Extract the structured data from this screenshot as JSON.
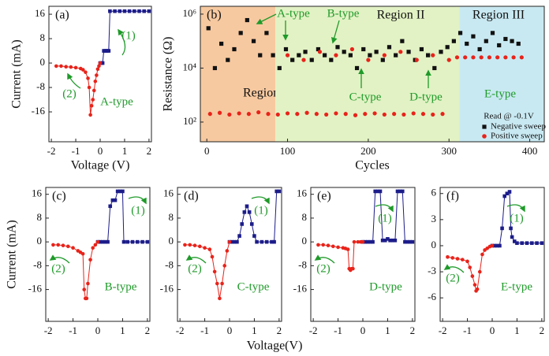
{
  "chart_data": [
    {
      "type": "line",
      "panel_label": "(a)",
      "x_label": "Voltage (V)",
      "y_label": "Current (mA)",
      "annotations": [
        "A-type",
        "(1)",
        "(2)"
      ],
      "xlim": [
        -2.1,
        2.1
      ],
      "xticks": [
        -2,
        -1,
        0,
        1,
        2
      ],
      "ylim": [
        -25.8,
        18.6
      ],
      "yticks": [
        16,
        8,
        0,
        -8,
        -16
      ],
      "series": [
        {
          "color": "#1c1c8a",
          "marker": "square",
          "x": [
            0,
            0.05,
            0.1,
            0.15,
            0.2,
            0.25,
            0.3,
            0.35,
            0.4,
            0.6,
            0.8,
            1.0,
            1.2,
            1.4,
            1.6,
            1.8,
            2.0
          ],
          "values": [
            0,
            0,
            0,
            4,
            4,
            4,
            4,
            4,
            17,
            17,
            17,
            17,
            17,
            17,
            17,
            17,
            17
          ]
        },
        {
          "color": "#e8231a",
          "marker": "circle",
          "x": [
            -1.8,
            -1.6,
            -1.4,
            -1.2,
            -1.0,
            -0.8,
            -0.7,
            -0.6,
            -0.5,
            -0.45,
            -0.4,
            -0.35,
            -0.3,
            -0.25,
            -0.2,
            -0.15,
            -0.1,
            -0.05,
            0
          ],
          "values": [
            -1,
            -1,
            -1.2,
            -1.3,
            -1.5,
            -1.8,
            -2.2,
            -3,
            -5,
            -8,
            -17,
            -14,
            -12,
            -9,
            -6,
            -4,
            -2,
            -1,
            0
          ]
        }
      ]
    },
    {
      "type": "scatter",
      "panel_label": "(b)",
      "x_label": "Cycles",
      "y_label": "Resistance (Ω)",
      "yscale": "log",
      "annotations": [
        "A-type",
        "B-type",
        "C-type",
        "D-type",
        "E-type",
        "Read @ -0.1V"
      ],
      "regions": [
        {
          "label": "Region I",
          "xlim": [
            -8,
            85
          ],
          "color": "#f7c9a0"
        },
        {
          "label": "Region II",
          "xlim": [
            85,
            313
          ],
          "color": "#e2f2c4"
        },
        {
          "label": "Region III",
          "xlim": [
            313,
            418
          ],
          "color": "#c9e9f2"
        }
      ],
      "legend": "lower right",
      "xlim": [
        -8,
        418
      ],
      "xticks": [
        0,
        100,
        200,
        300,
        400
      ],
      "ylim": [
        18.6,
        1950000
      ],
      "yticks": [
        {
          "value": 100,
          "label": "10²"
        },
        {
          "value": 10000,
          "label": "10⁴"
        },
        {
          "value": 1000000,
          "label": "10⁶"
        }
      ],
      "series": [
        {
          "name": "Negative sweep",
          "color": "#111111",
          "marker": "square",
          "x": [
            2,
            10,
            18,
            26,
            34,
            42,
            50,
            58,
            66,
            74,
            82,
            90,
            98,
            106,
            114,
            122,
            130,
            138,
            146,
            154,
            162,
            170,
            178,
            186,
            194,
            202,
            210,
            218,
            226,
            234,
            242,
            250,
            258,
            266,
            274,
            282,
            290,
            298,
            306,
            314,
            322,
            330,
            338,
            346,
            354,
            362,
            370,
            378,
            386
          ],
          "values": [
            300000,
            10000,
            80000,
            20000,
            50000,
            200000,
            600000,
            100000,
            30000,
            200000,
            30000,
            10000,
            50000,
            20000,
            30000,
            40000,
            20000,
            50000,
            30000,
            20000,
            60000,
            40000,
            30000,
            10000,
            50000,
            30000,
            40000,
            20000,
            60000,
            30000,
            100000,
            40000,
            20000,
            50000,
            30000,
            10000,
            40000,
            60000,
            100000,
            200000,
            80000,
            150000,
            50000,
            100000,
            200000,
            70000,
            120000,
            100000,
            80000
          ]
        },
        {
          "name": "Positive sweep",
          "color": "#e8231a",
          "marker": "circle",
          "x": [
            4,
            16,
            28,
            40,
            52,
            64,
            76,
            88,
            100,
            112,
            124,
            136,
            148,
            160,
            172,
            184,
            196,
            208,
            220,
            232,
            244,
            256,
            268,
            280,
            292,
            100,
            120,
            140,
            160,
            180,
            200,
            220,
            240,
            260,
            280,
            300,
            310,
            320,
            330,
            340,
            350,
            360,
            370,
            380,
            390
          ],
          "values": [
            200,
            220,
            190,
            210,
            200,
            230,
            200,
            190,
            210,
            200,
            220,
            200,
            190,
            210,
            200,
            180,
            200,
            210,
            190,
            200,
            190,
            210,
            200,
            190,
            200,
            30000,
            20000,
            40000,
            30000,
            50000,
            20000,
            30000,
            40000,
            20000,
            30000,
            20000,
            25000,
            25000,
            25000,
            25000,
            25000,
            25000,
            25000,
            25000,
            25000
          ]
        }
      ]
    },
    {
      "type": "line",
      "panel_label": "(c)",
      "annotations": [
        "B-type",
        "(1)",
        "(2)"
      ],
      "xlim": [
        -2.1,
        2.1
      ],
      "xticks": [
        -2,
        -1,
        0,
        1,
        2
      ],
      "ylim": [
        -26.7,
        18.3
      ],
      "yticks": [
        16,
        8,
        0,
        -8,
        -16
      ],
      "series": [
        {
          "color": "#1c1c8a",
          "marker": "square",
          "x": [
            0,
            0.1,
            0.2,
            0.3,
            0.4,
            0.5,
            0.6,
            0.7,
            0.8,
            0.9,
            1.0,
            1.05,
            1.2,
            1.4,
            1.6,
            1.8,
            2.0
          ],
          "values": [
            0,
            0,
            0,
            0,
            0,
            12,
            14,
            14,
            17,
            17,
            17,
            0,
            0,
            0,
            0,
            0,
            0
          ]
        },
        {
          "color": "#e8231a",
          "marker": "circle",
          "x": [
            -1.8,
            -1.6,
            -1.4,
            -1.2,
            -1.0,
            -0.8,
            -0.7,
            -0.6,
            -0.55,
            -0.5,
            -0.45,
            -0.4,
            -0.3,
            -0.2,
            -0.1,
            0
          ],
          "values": [
            -1,
            -1,
            -1.2,
            -1.5,
            -2,
            -3,
            -3.5,
            -4,
            -16,
            -19,
            -19,
            -14,
            -6,
            -2,
            -1,
            0
          ]
        }
      ]
    },
    {
      "type": "line",
      "panel_label": "(d)",
      "annotations": [
        "C-type",
        "(1)",
        "(2)"
      ],
      "xlim": [
        -2.1,
        2.1
      ],
      "xticks": [
        -2,
        -1,
        0,
        1,
        2
      ],
      "ylim": [
        -26.7,
        18.3
      ],
      "yticks": [
        16,
        8,
        0,
        -8,
        -16
      ],
      "series": [
        {
          "color": "#1c1c8a",
          "marker": "square",
          "x": [
            0,
            0.1,
            0.2,
            0.3,
            0.4,
            0.5,
            0.6,
            0.7,
            0.8,
            0.9,
            1.0,
            1.1,
            1.3,
            1.5,
            1.7,
            1.8,
            1.9,
            2.0
          ],
          "values": [
            0,
            0,
            0,
            0,
            2,
            6,
            10,
            12,
            10,
            6,
            2,
            0,
            0,
            0,
            0,
            0,
            17,
            17
          ]
        },
        {
          "color": "#e8231a",
          "marker": "circle",
          "x": [
            -1.8,
            -1.6,
            -1.4,
            -1.2,
            -1.0,
            -0.8,
            -0.7,
            -0.6,
            -0.5,
            -0.4,
            -0.3,
            -0.2,
            -0.1,
            0
          ],
          "values": [
            -1,
            -1,
            -1.2,
            -1.5,
            -2,
            -2.5,
            -5,
            -10,
            -14,
            -19,
            -14,
            -8,
            -3,
            0
          ]
        }
      ]
    },
    {
      "type": "line",
      "panel_label": "(e)",
      "annotations": [
        "D-type",
        "(1)",
        "(2)"
      ],
      "xlim": [
        -2.1,
        2.1
      ],
      "xticks": [
        -2,
        -1,
        0,
        1,
        2
      ],
      "ylim": [
        -26.7,
        18.3
      ],
      "yticks": [
        16,
        8,
        0,
        -8,
        -16
      ],
      "series": [
        {
          "color": "#1c1c8a",
          "marker": "square",
          "x": [
            0,
            0.1,
            0.2,
            0.3,
            0.4,
            0.5,
            0.6,
            0.7,
            0.8,
            0.9,
            1.0,
            1.1,
            1.2,
            1.3,
            1.4,
            1.5,
            1.6,
            1.7,
            1.8,
            1.9,
            2.0
          ],
          "values": [
            0,
            0,
            0,
            0,
            0,
            17,
            17,
            17,
            0.5,
            0.5,
            1,
            0.5,
            0.5,
            0.5,
            17,
            17,
            17,
            0,
            0,
            0,
            0
          ]
        },
        {
          "color": "#e8231a",
          "marker": "circle",
          "x": [
            -1.8,
            -1.6,
            -1.4,
            -1.2,
            -1.0,
            -0.8,
            -0.7,
            -0.6,
            -0.55,
            -0.5,
            -0.45,
            -0.4,
            -0.35,
            -0.2,
            -0.1,
            0
          ],
          "values": [
            -1,
            -1,
            -1.2,
            -1.5,
            -1.8,
            -2,
            -2.2,
            -2.5,
            -9,
            -9.5,
            -9,
            -9,
            0,
            0,
            0,
            0
          ]
        }
      ]
    },
    {
      "type": "line",
      "panel_label": "(f)",
      "annotations": [
        "E-type",
        "(1)",
        "(2)"
      ],
      "xlim": [
        -2.1,
        2.1
      ],
      "xticks": [
        -2,
        -1,
        0,
        1,
        2
      ],
      "ylim": [
        -8.7,
        6.7
      ],
      "yticks": [
        6,
        3,
        0,
        -3,
        -6
      ],
      "series": [
        {
          "color": "#1c1c8a",
          "marker": "square",
          "x": [
            0,
            0.1,
            0.2,
            0.3,
            0.4,
            0.5,
            0.6,
            0.7,
            0.75,
            0.8,
            0.9,
            1.0,
            1.2,
            1.4,
            1.6,
            1.8,
            2.0
          ],
          "values": [
            0,
            0,
            0,
            0,
            2,
            5.7,
            6,
            6.2,
            2,
            1,
            0.5,
            0.3,
            0.3,
            0.3,
            0.3,
            0.3,
            0.3
          ]
        },
        {
          "color": "#e8231a",
          "marker": "circle",
          "x": [
            -1.8,
            -1.6,
            -1.4,
            -1.2,
            -1.0,
            -0.9,
            -0.8,
            -0.7,
            -0.65,
            -0.6,
            -0.5,
            -0.4,
            -0.3,
            -0.2,
            -0.1,
            0
          ],
          "values": [
            -1.3,
            -1.4,
            -1.5,
            -1.6,
            -1.8,
            -2.5,
            -3.5,
            -4.5,
            -5.2,
            -5,
            -3,
            -1,
            -0.5,
            -0.3,
            -0.1,
            0
          ]
        }
      ]
    }
  ],
  "shared_x_label": "Voltage(V)",
  "shared_y_label": "Current (mA)"
}
